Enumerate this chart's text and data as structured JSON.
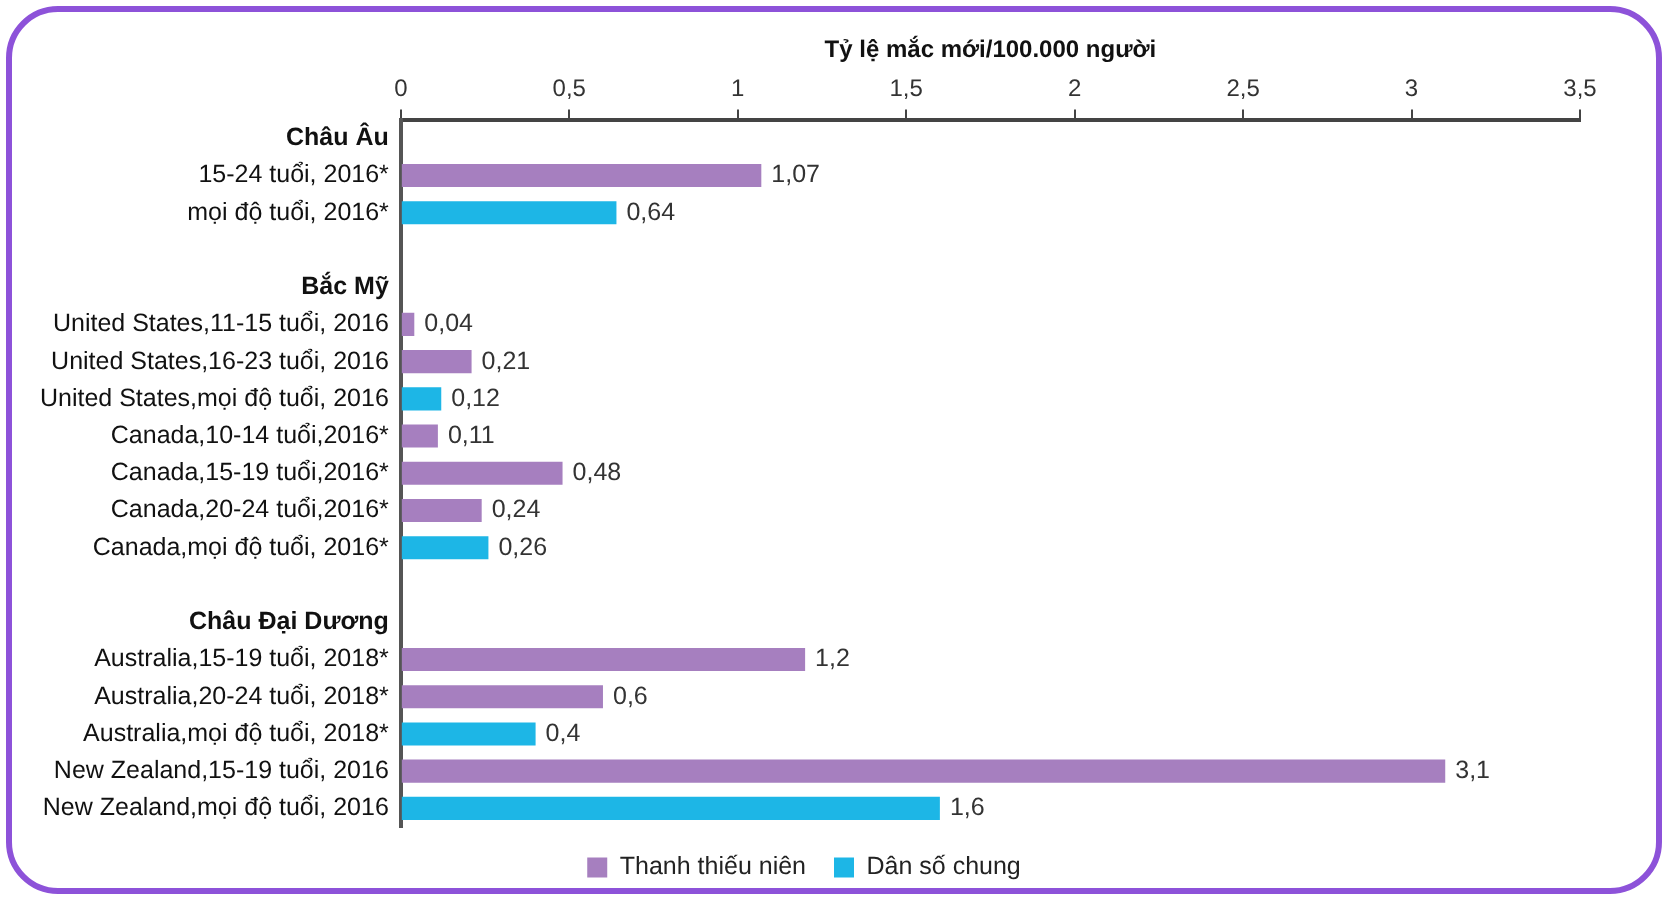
{
  "chart_data": {
    "type": "bar",
    "orientation": "horizontal",
    "xlabel": "Tỷ lệ mắc mới/100.000 người",
    "categories": [
      "Châu Âu",
      "15-24 tuổi, 2016*",
      "mọi độ tuổi, 2016*",
      null,
      "Bắc Mỹ",
      "United States,11-15 tuổi, 2016",
      "United States,16-23 tuổi, 2016",
      "United States,mọi độ tuổi, 2016",
      "Canada,10-14 tuổi,2016*",
      "Canada,15-19 tuổi,2016*",
      "Canada,20-24 tuổi,2016*",
      "Canada,mọi độ tuổi, 2016*",
      null,
      "Châu Đại Dương",
      "Australia,15-19 tuổi, 2018*",
      "Australia,20-24 tuổi, 2018*",
      "Australia,mọi độ tuổi, 2018*",
      "New Zealand,15-19 tuổi, 2016",
      "New Zealand,mọi độ tuổi, 2016"
    ],
    "series": [
      {
        "name": "Thanh thiếu niên",
        "color": "#a67fbf",
        "values": [
          null,
          1.07,
          null,
          null,
          null,
          0.04,
          0.21,
          null,
          0.11,
          0.48,
          0.24,
          null,
          null,
          null,
          1.2,
          0.6,
          null,
          3.1,
          null
        ],
        "value_labels": [
          null,
          "1,07",
          null,
          null,
          null,
          "0,04",
          "0,21",
          null,
          "0,11",
          "0,48",
          "0,24",
          null,
          null,
          null,
          "1,2",
          "0,6",
          null,
          "3,1",
          null
        ]
      },
      {
        "name": "Dân số chung",
        "color": "#1db6e6",
        "values": [
          null,
          null,
          0.64,
          null,
          null,
          null,
          null,
          0.12,
          null,
          null,
          null,
          0.26,
          null,
          null,
          null,
          null,
          0.4,
          null,
          1.6
        ],
        "value_labels": [
          null,
          null,
          "0,64",
          null,
          null,
          null,
          null,
          "0,12",
          null,
          null,
          null,
          "0,26",
          null,
          null,
          null,
          null,
          "0,4",
          null,
          "1,6"
        ]
      }
    ],
    "xlim": [
      0,
      3.5
    ],
    "xticks": [
      0,
      {
        "value": 0.5,
        "label": "0,5"
      },
      1,
      {
        "value": 1.5,
        "label": "1,5"
      },
      2,
      {
        "value": 2.5,
        "label": "2,5"
      },
      3,
      {
        "value": 3.5,
        "label": "3,5"
      }
    ],
    "grid": false,
    "legend": "bottom"
  }
}
